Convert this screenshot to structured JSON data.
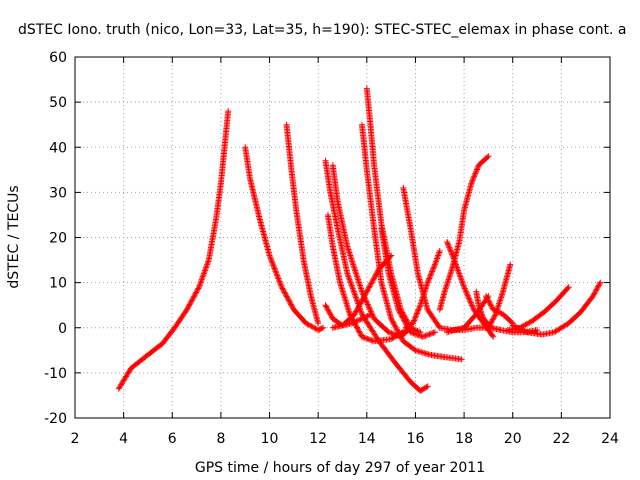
{
  "chart_data": {
    "type": "scatter",
    "title": "dSTEC Iono. truth (nico, Lon=33, Lat=35, h=190): STEC-STEC_elemax in phase cont. a",
    "xlabel": "GPS time / hours of day 297 of year 2011",
    "ylabel": "dSTEC  / TECUs",
    "xlim": [
      2,
      24
    ],
    "ylim": [
      -20,
      60
    ],
    "xticks": [
      "2",
      "4",
      "6",
      "8",
      "10",
      "12",
      "14",
      "16",
      "18",
      "20",
      "22",
      "24"
    ],
    "yticks": [
      "-20",
      "-10",
      "0",
      "10",
      "20",
      "30",
      "40",
      "50",
      "60"
    ],
    "grid": true,
    "marker": "+",
    "color": "#ff0000",
    "series": [
      {
        "x": [
          3.8,
          4.3,
          5.0,
          5.6,
          6.1,
          6.6,
          7.1,
          7.5,
          7.8,
          8.0,
          8.15,
          8.3
        ],
        "y": [
          -13.5,
          -9,
          -6,
          -3.5,
          0,
          4,
          9,
          15,
          24,
          32,
          40,
          48
        ]
      },
      {
        "x": [
          9.0,
          9.2,
          9.6,
          10.0,
          10.5,
          11.0,
          11.5,
          12.0,
          12.2
        ],
        "y": [
          40,
          33,
          24,
          16,
          9,
          4,
          1,
          -0.5,
          0
        ]
      },
      {
        "x": [
          10.7,
          10.9,
          11.1,
          11.4,
          11.7,
          12.0
        ],
        "y": [
          45,
          35,
          26,
          15,
          7,
          1
        ]
      },
      {
        "x": [
          12.3,
          12.5,
          12.8,
          13.2,
          13.8,
          14.5,
          15.2,
          15.8,
          16.2,
          16.5
        ],
        "y": [
          37,
          30,
          22,
          12,
          3,
          -3,
          -8,
          -12,
          -14,
          -13
        ]
      },
      {
        "x": [
          12.4,
          12.6,
          12.9,
          13.3,
          13.8,
          14.3,
          15.0,
          15.8
        ],
        "y": [
          25,
          18,
          10,
          3,
          -2,
          -3,
          -2.5,
          0
        ]
      },
      {
        "x": [
          12.6,
          12.8,
          13.2,
          13.8,
          14.3,
          14.9,
          15.4,
          15.8
        ],
        "y": [
          36,
          28,
          18,
          8,
          2,
          -1,
          -2,
          0
        ]
      },
      {
        "x": [
          12.3,
          12.6,
          13.0,
          13.4,
          13.8,
          14.2
        ],
        "y": [
          5,
          2,
          0.5,
          1,
          2,
          3
        ]
      },
      {
        "x": [
          12.6,
          13.0,
          13.5,
          14.0,
          14.5,
          15.0
        ],
        "y": [
          0,
          0.5,
          3,
          8,
          13,
          16
        ]
      },
      {
        "x": [
          14.0,
          14.15,
          14.3,
          14.6,
          15.0,
          15.4,
          15.8,
          16.2
        ],
        "y": [
          53,
          45,
          36,
          23,
          12,
          4,
          0,
          -1
        ]
      },
      {
        "x": [
          13.8,
          14.0,
          14.3,
          14.6,
          15.0,
          15.5,
          16.0,
          16.6,
          17.2,
          17.9
        ],
        "y": [
          45,
          35,
          22,
          10,
          2,
          -3,
          -5,
          -6,
          -6.5,
          -7
        ]
      },
      {
        "x": [
          14.6,
          14.9,
          15.3,
          15.8,
          16.3,
          16.8
        ],
        "y": [
          22,
          12,
          4,
          -1,
          -2,
          -1
        ]
      },
      {
        "x": [
          15.5,
          15.8,
          16.1,
          16.5,
          17.0,
          17.5,
          18.0,
          18.5,
          19.0
        ],
        "y": [
          31,
          22,
          12,
          4,
          0,
          -0.5,
          -0.5,
          0,
          0
        ]
      },
      {
        "x": [
          15.6,
          15.9,
          16.2,
          16.5,
          16.8,
          17.0
        ],
        "y": [
          0,
          1,
          5,
          10,
          14,
          17
        ]
      },
      {
        "x": [
          17.0,
          17.2,
          17.5,
          17.8,
          18.0,
          18.3,
          18.6,
          19.0
        ],
        "y": [
          4,
          8,
          13,
          19,
          26,
          32,
          36,
          38
        ]
      },
      {
        "x": [
          17.3,
          17.6,
          18.0,
          18.4,
          18.8,
          19.2
        ],
        "y": [
          19,
          15,
          9,
          4,
          1,
          -2
        ]
      },
      {
        "x": [
          18.5,
          18.6,
          18.8,
          19.1,
          19.5,
          20.0,
          20.5,
          21.0
        ],
        "y": [
          8,
          5,
          2,
          0,
          -0.5,
          -1,
          -1,
          -0.5
        ]
      },
      {
        "x": [
          18.9,
          19.2,
          19.6,
          20.0
        ],
        "y": [
          7,
          4,
          3,
          1
        ]
      },
      {
        "x": [
          19.0,
          19.3,
          19.6,
          19.9
        ],
        "y": [
          0,
          3,
          8,
          14
        ]
      },
      {
        "x": [
          17.3,
          17.6,
          18.0,
          18.5,
          19.0
        ],
        "y": [
          -1,
          -0.5,
          0,
          3,
          7
        ]
      },
      {
        "x": [
          19.8,
          20.3,
          20.8,
          21.3,
          21.8,
          22.3
        ],
        "y": [
          -0.5,
          0,
          1.5,
          3.5,
          6,
          9
        ]
      },
      {
        "x": [
          20.0,
          20.6,
          21.2,
          21.7,
          22.3,
          22.8,
          23.3,
          23.6
        ],
        "y": [
          0.5,
          -1,
          -1.5,
          -1,
          1,
          3.5,
          7,
          10
        ]
      }
    ]
  }
}
